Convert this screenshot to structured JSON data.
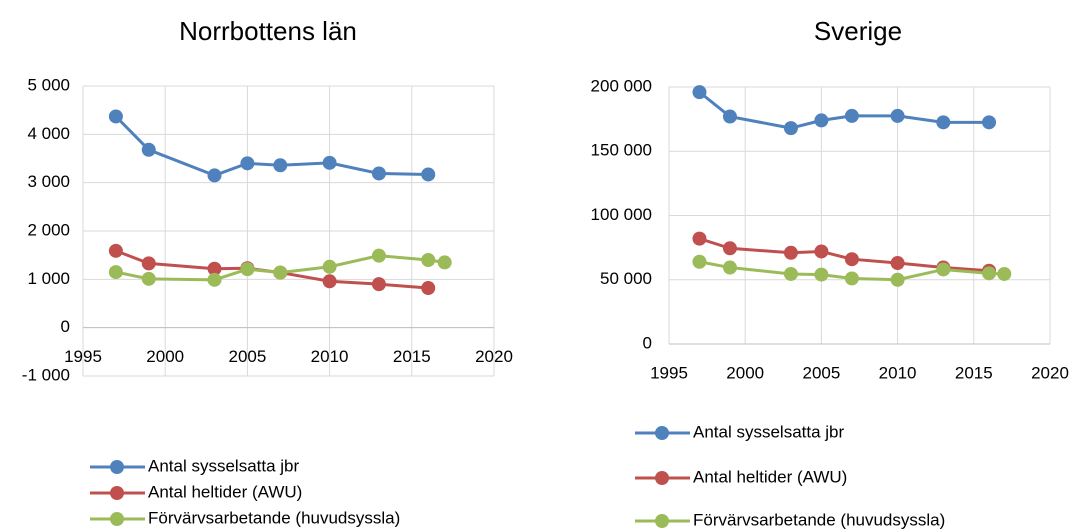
{
  "chart_data": [
    {
      "type": "line",
      "title": "Norrbottens län",
      "x": [
        1997,
        1999,
        2003,
        2005,
        2007,
        2010,
        2013,
        2016,
        2017
      ],
      "series": [
        {
          "name": "Antal sysselsatta jbr",
          "color": "#4f81bd",
          "values": [
            4370,
            3680,
            3150,
            3400,
            3360,
            3410,
            3190,
            3170,
            null
          ]
        },
        {
          "name": "Antal heltider (AWU)",
          "color": "#c0504d",
          "values": [
            1590,
            1330,
            1220,
            1230,
            1140,
            960,
            900,
            820,
            null
          ]
        },
        {
          "name": "Förvärvsarbetande (huvudsyssla)",
          "color": "#9bbb59",
          "values": [
            1150,
            1010,
            990,
            1210,
            1140,
            1260,
            1490,
            1400,
            1350
          ]
        }
      ],
      "xlim": [
        1995,
        2020
      ],
      "xticks": [
        1995,
        2000,
        2005,
        2010,
        2015,
        2020
      ],
      "ylim": [
        -1000,
        5000
      ],
      "yticks": [
        {
          "value": -1000,
          "label": "-1 000"
        },
        0,
        {
          "value": 1000,
          "label": "1 000"
        },
        {
          "value": 2000,
          "label": "2 000"
        },
        {
          "value": 3000,
          "label": "3 000"
        },
        {
          "value": 4000,
          "label": "4 000"
        },
        {
          "value": 5000,
          "label": "5 000"
        }
      ],
      "grid": true,
      "legend": "bottom"
    },
    {
      "type": "line",
      "title": "Sverige",
      "x": [
        1997,
        1999,
        2003,
        2005,
        2007,
        2010,
        2013,
        2016,
        2017
      ],
      "series": [
        {
          "name": "Antal sysselsatta jbr",
          "color": "#4f81bd",
          "values": [
            196000,
            177000,
            168000,
            174000,
            177500,
            177500,
            172500,
            172500,
            null
          ]
        },
        {
          "name": "Antal heltider (AWU)",
          "color": "#c0504d",
          "values": [
            82000,
            74500,
            71000,
            72000,
            66000,
            63000,
            59500,
            57000,
            null
          ]
        },
        {
          "name": "Förvärvsarbetande (huvudsyssla)",
          "color": "#9bbb59",
          "values": [
            64000,
            59500,
            54500,
            54000,
            51000,
            50000,
            58000,
            55000,
            54500
          ]
        }
      ],
      "xlim": [
        1995,
        2020
      ],
      "xticks": [
        1995,
        2000,
        2005,
        2010,
        2015,
        2020
      ],
      "ylim": [
        0,
        200000
      ],
      "yticks": [
        0,
        {
          "value": 50000,
          "label": "50 000"
        },
        {
          "value": 100000,
          "label": "100 000"
        },
        {
          "value": 150000,
          "label": "150 000"
        },
        {
          "value": 200000,
          "label": "200 000"
        }
      ],
      "grid": true,
      "legend": "bottom"
    }
  ]
}
